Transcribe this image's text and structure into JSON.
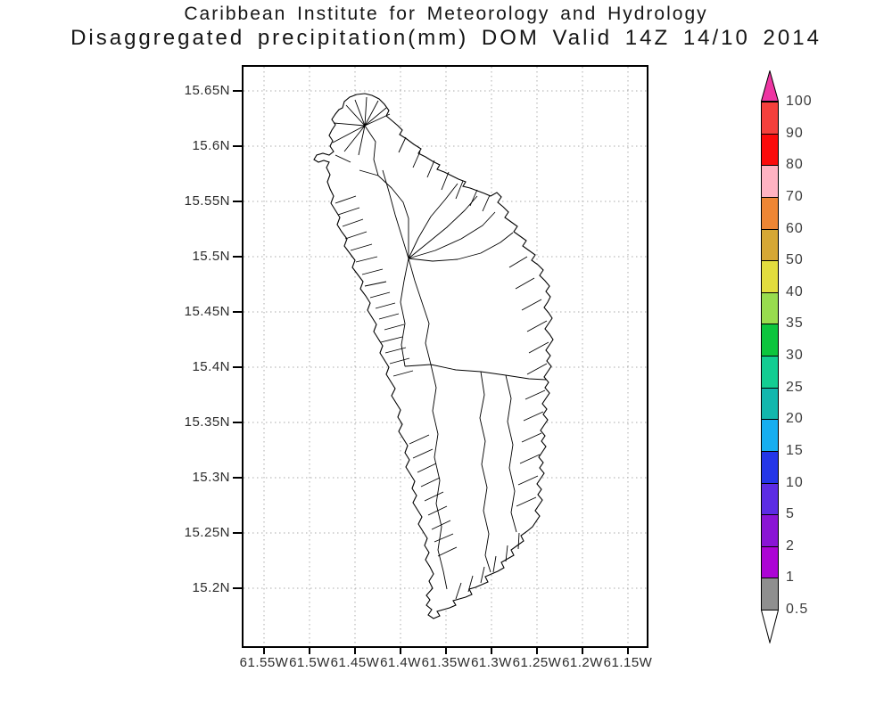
{
  "title": {
    "line1": "Caribbean Institute for Meteorology and Hydrology",
    "line2": "Disaggregated precipitation(mm) DOM Valid 14Z 14/10 2014"
  },
  "map": {
    "region": "Dominica watershed boundaries",
    "y_axis_labels": [
      "15.65N",
      "15.6N",
      "15.55N",
      "15.5N",
      "15.45N",
      "15.4N",
      "15.35N",
      "15.3N",
      "15.25N",
      "15.2N"
    ],
    "x_axis_labels": [
      "61.55W",
      "61.5W",
      "61.45W",
      "61.4W",
      "61.35W",
      "61.3W",
      "61.25W",
      "61.2W",
      "61.15W"
    ]
  },
  "legend": {
    "levels": [
      "100",
      "90",
      "80",
      "70",
      "60",
      "50",
      "40",
      "35",
      "30",
      "25",
      "20",
      "15",
      "10",
      "5",
      "2",
      "1",
      "0.5"
    ],
    "segment_colors": [
      "#f4403c",
      "#fb0b0b",
      "#ffb3c2",
      "#ee8634",
      "#d6a735",
      "#e2dd3e",
      "#98dc4e",
      "#0cc53d",
      "#13cd92",
      "#12b7ad",
      "#16aef0",
      "#2436e8",
      "#5c2ce4",
      "#8a14d5",
      "#ac04d5",
      "#8f8f8f"
    ],
    "arrow_top_color": "#ee35a2",
    "arrow_bottom_color": "#ffffff"
  },
  "colors": {
    "title_text": "#151515",
    "axis_text": "#2b2b2b",
    "legend_text": "#3d3d3d",
    "grid": "#ababab",
    "frame": "#000000",
    "island_outline": "#000000",
    "island_fill": "#ffffff"
  }
}
